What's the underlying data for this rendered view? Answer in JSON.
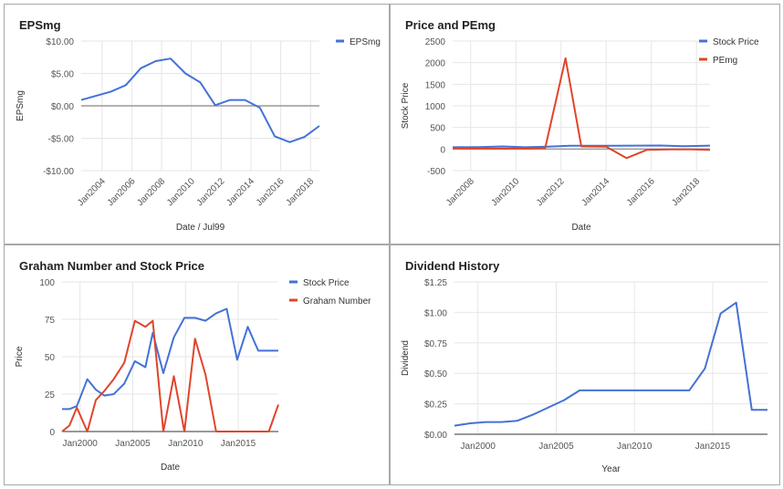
{
  "colors": {
    "blue": "#4472d6",
    "red": "#e0452b",
    "grid": "#e6e6e6",
    "zero": "#999999",
    "text": "#555555"
  },
  "chart_data": [
    {
      "type": "line",
      "title": "EPSmg",
      "xlabel": "Date / Jul99",
      "ylabel": "EPSmg",
      "xlim": [
        2002.6,
        2018.6
      ],
      "ylim": [
        -10,
        10
      ],
      "yticks": [
        {
          "v": 10,
          "label": "$10.00"
        },
        {
          "v": 5,
          "label": "$5.00"
        },
        {
          "v": 0,
          "label": "$0.00"
        },
        {
          "v": -5,
          "label": "-$5.00"
        },
        {
          "v": -10,
          "label": "-$10.00"
        }
      ],
      "xticks": [
        {
          "v": 2004,
          "label": "Jan2004"
        },
        {
          "v": 2006,
          "label": "Jan2006"
        },
        {
          "v": 2008,
          "label": "Jan2008"
        },
        {
          "v": 2010,
          "label": "Jan2010"
        },
        {
          "v": 2012,
          "label": "Jan2012"
        },
        {
          "v": 2014,
          "label": "Jan2014"
        },
        {
          "v": 2016,
          "label": "Jan2016"
        },
        {
          "v": 2018,
          "label": "Jan2018"
        }
      ],
      "xtick_rotate": true,
      "zero_line": true,
      "legend": "top-right",
      "series": [
        {
          "name": "EPSmg",
          "color": "#4472d6",
          "x": [
            2002.6,
            2004.6,
            2005.6,
            2006.6,
            2007.6,
            2008.6,
            2009.6,
            2010.6,
            2011.6,
            2012.6,
            2013.6,
            2014.6,
            2015.6,
            2016.6,
            2017.6,
            2018.6
          ],
          "y": [
            0.9,
            2.2,
            3.2,
            5.8,
            6.9,
            7.3,
            5.0,
            3.6,
            0.1,
            0.9,
            0.9,
            -0.3,
            -4.7,
            -5.6,
            -4.8,
            -3.1
          ]
        }
      ]
    },
    {
      "type": "line",
      "title": "Price and PEmg",
      "xlabel": "Date",
      "ylabel": "Stock Price",
      "xlim": [
        2007.2,
        2018.6
      ],
      "ylim": [
        -500,
        2500
      ],
      "yticks": [
        {
          "v": 2500,
          "label": "2500"
        },
        {
          "v": 2000,
          "label": "2000"
        },
        {
          "v": 1500,
          "label": "1500"
        },
        {
          "v": 1000,
          "label": "1000"
        },
        {
          "v": 500,
          "label": "500"
        },
        {
          "v": 0,
          "label": "0"
        },
        {
          "v": -500,
          "label": "-500"
        }
      ],
      "xticks": [
        {
          "v": 2008,
          "label": "Jan2008"
        },
        {
          "v": 2010,
          "label": "Jan2010"
        },
        {
          "v": 2012,
          "label": "Jan2012"
        },
        {
          "v": 2014,
          "label": "Jan2014"
        },
        {
          "v": 2016,
          "label": "Jan2016"
        },
        {
          "v": 2018,
          "label": "Jan2018"
        }
      ],
      "xtick_rotate": true,
      "zero_line": true,
      "legend": "top-right",
      "series": [
        {
          "name": "Stock Price",
          "color": "#4472d6",
          "x": [
            2007.2,
            2008.4,
            2009.4,
            2010.4,
            2011.4,
            2012.4,
            2013.4,
            2014.4,
            2015.4,
            2016.4,
            2017.4,
            2018.4,
            2018.6
          ],
          "y": [
            40,
            45,
            60,
            40,
            55,
            75,
            76,
            76,
            78,
            80,
            65,
            75,
            78
          ]
        },
        {
          "name": "PEmg",
          "color": "#e0452b",
          "x": [
            2007.2,
            2008.5,
            2009.5,
            2010.5,
            2011.3,
            2012.2,
            2012.9,
            2014.0,
            2014.9,
            2015.8,
            2016.8,
            2017.8,
            2018.6
          ],
          "y": [
            15,
            10,
            10,
            10,
            20,
            2100,
            60,
            55,
            -210,
            -20,
            -10,
            -10,
            -20
          ]
        }
      ]
    },
    {
      "type": "line",
      "title": "Graham Number and Stock Price",
      "xlabel": "Date",
      "ylabel": "Price",
      "xlim": [
        1998.3,
        2018.8
      ],
      "ylim": [
        0,
        100
      ],
      "yticks": [
        {
          "v": 100,
          "label": "100"
        },
        {
          "v": 75,
          "label": "75"
        },
        {
          "v": 50,
          "label": "50"
        },
        {
          "v": 25,
          "label": "25"
        },
        {
          "v": 0,
          "label": "0"
        }
      ],
      "xticks": [
        {
          "v": 2000,
          "label": "Jan2000"
        },
        {
          "v": 2005,
          "label": "Jan2005"
        },
        {
          "v": 2010,
          "label": "Jan2010"
        },
        {
          "v": 2015,
          "label": "Jan2015"
        }
      ],
      "xtick_rotate": false,
      "zero_line": false,
      "legend": "top-right",
      "series": [
        {
          "name": "Stock Price",
          "color": "#4472d6",
          "x": [
            1998.3,
            1999.0,
            1999.7,
            2000.7,
            2001.5,
            2002.3,
            2003.2,
            2004.2,
            2005.2,
            2006.2,
            2006.9,
            2007.9,
            2008.9,
            2009.9,
            2010.9,
            2011.9,
            2012.9,
            2013.9,
            2014.9,
            2015.9,
            2016.9,
            2017.9,
            2018.8
          ],
          "y": [
            15,
            15,
            17,
            35,
            28,
            24,
            25,
            32,
            47,
            43,
            66,
            39,
            63,
            76,
            76,
            74,
            79,
            82,
            48,
            70,
            54,
            54,
            54
          ]
        },
        {
          "name": "Graham Number",
          "color": "#e0452b",
          "x": [
            1998.3,
            1999.0,
            1999.7,
            2000.7,
            2001.5,
            2002.3,
            2003.2,
            2004.2,
            2005.2,
            2006.2,
            2006.9,
            2007.9,
            2008.9,
            2009.9,
            2010.9,
            2011.9,
            2012.9,
            2013.9,
            2014.9,
            2015.9,
            2016.9,
            2017.9,
            2018.8
          ],
          "y": [
            0,
            4,
            16,
            0,
            21,
            27,
            35,
            46,
            74,
            70,
            74,
            0,
            37,
            0,
            62,
            38,
            0,
            0,
            0,
            0,
            0,
            0,
            18
          ]
        }
      ]
    },
    {
      "type": "line",
      "title": "Dividend History",
      "xlabel": "Year",
      "ylabel": "Dividend",
      "xlim": [
        1998.5,
        2018.5
      ],
      "ylim": [
        0,
        1.25
      ],
      "yticks": [
        {
          "v": 1.25,
          "label": "$1.25"
        },
        {
          "v": 1.0,
          "label": "$1.00"
        },
        {
          "v": 0.75,
          "label": "$0.75"
        },
        {
          "v": 0.5,
          "label": "$0.50"
        },
        {
          "v": 0.25,
          "label": "$0.25"
        },
        {
          "v": 0,
          "label": "$0.00"
        }
      ],
      "xticks": [
        {
          "v": 2000,
          "label": "Jan2000"
        },
        {
          "v": 2005,
          "label": "Jan2005"
        },
        {
          "v": 2010,
          "label": "Jan2010"
        },
        {
          "v": 2015,
          "label": "Jan2015"
        }
      ],
      "xtick_rotate": false,
      "zero_line": false,
      "legend": "",
      "series": [
        {
          "name": "",
          "color": "#4472d6",
          "x": [
            1998.5,
            1999.5,
            2000.5,
            2001.5,
            2002.5,
            2003.5,
            2004.5,
            2005.5,
            2006.5,
            2007.5,
            2008.5,
            2009.5,
            2010.5,
            2011.5,
            2012.5,
            2013.5,
            2014.5,
            2015.5,
            2016.5,
            2017.5,
            2018.5
          ],
          "y": [
            0.07,
            0.09,
            0.1,
            0.1,
            0.11,
            0.16,
            0.22,
            0.28,
            0.36,
            0.36,
            0.36,
            0.36,
            0.36,
            0.36,
            0.36,
            0.36,
            0.54,
            0.99,
            1.08,
            0.2,
            0.2
          ]
        }
      ]
    }
  ]
}
